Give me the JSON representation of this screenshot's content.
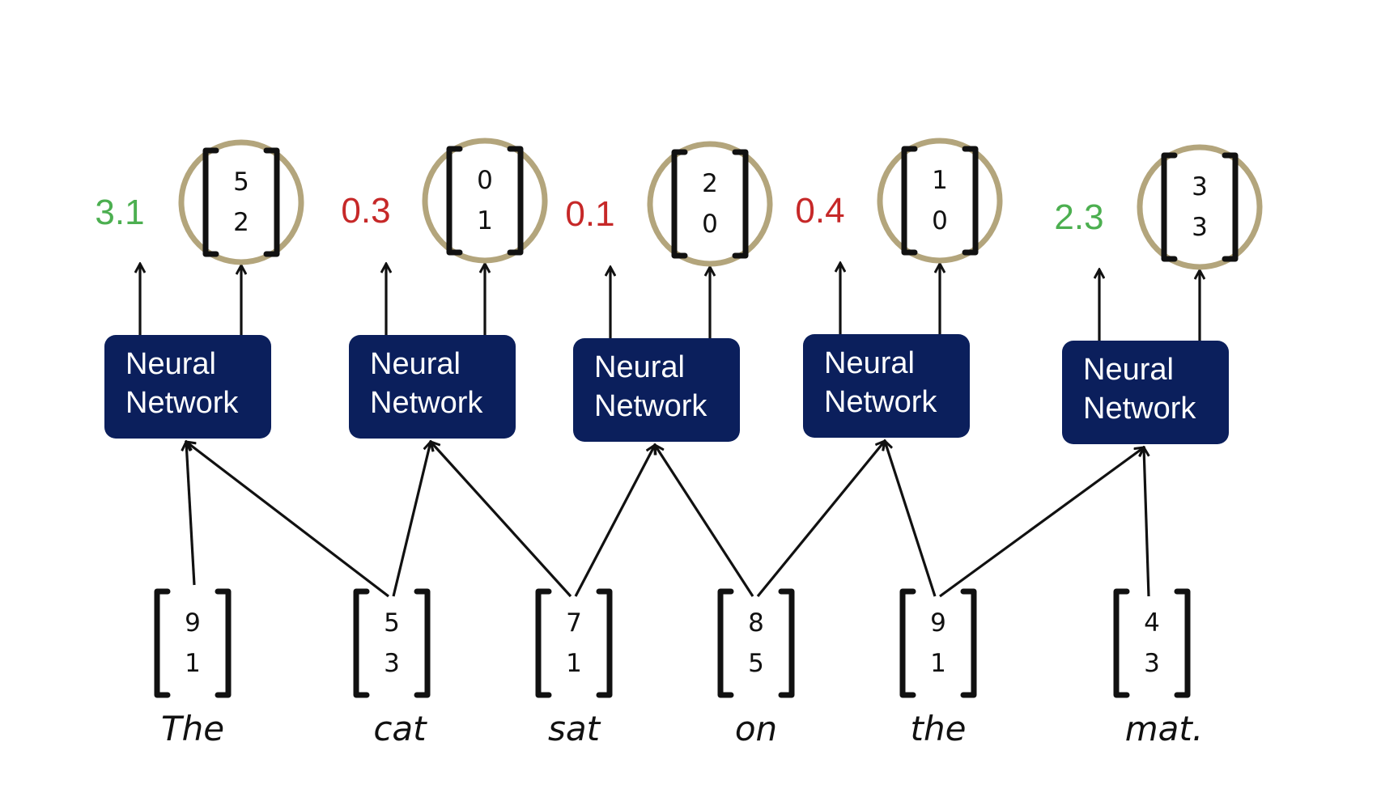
{
  "colors": {
    "box_fill": "#0b1f5c",
    "box_text": "#ffffff",
    "circle_stroke": "#b3a57c",
    "positive_score": "#4caf50",
    "negative_score": "#c62828",
    "ink": "#111111"
  },
  "network_label": [
    "Neural",
    "Network"
  ],
  "words": [
    "The",
    "cat",
    "sat",
    "on",
    "the",
    "mat."
  ],
  "input_vectors": [
    [
      "9",
      "1"
    ],
    [
      "5",
      "3"
    ],
    [
      "7",
      "1"
    ],
    [
      "8",
      "5"
    ],
    [
      "9",
      "1"
    ],
    [
      "4",
      "3"
    ]
  ],
  "windows": [
    {
      "score": "3.1",
      "score_type": "positive",
      "output_vector": [
        "5",
        "2"
      ],
      "inputs": [
        0,
        1
      ]
    },
    {
      "score": "0.3",
      "score_type": "negative",
      "output_vector": [
        "0",
        "1"
      ],
      "inputs": [
        1,
        2
      ]
    },
    {
      "score": "0.1",
      "score_type": "negative",
      "output_vector": [
        "2",
        "0"
      ],
      "inputs": [
        2,
        3
      ]
    },
    {
      "score": "0.4",
      "score_type": "negative",
      "output_vector": [
        "1",
        "0"
      ],
      "inputs": [
        3,
        4
      ]
    },
    {
      "score": "2.3",
      "score_type": "positive",
      "output_vector": [
        "3",
        "3"
      ],
      "inputs": [
        4,
        5
      ]
    }
  ]
}
